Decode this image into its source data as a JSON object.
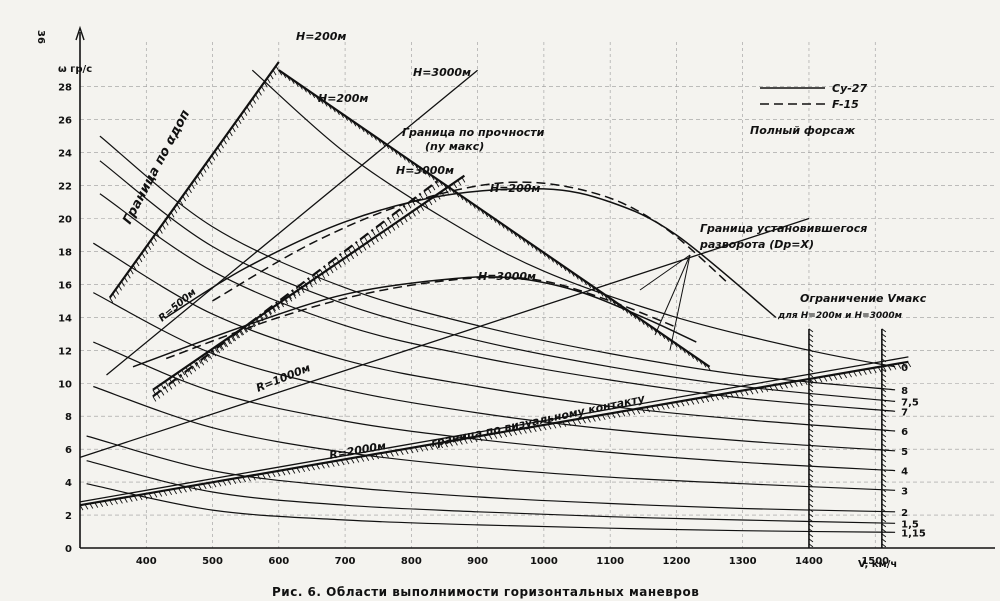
{
  "page": {
    "page_number": "36"
  },
  "caption": "Рис. 6. Области выполнимости горизонтальных маневров",
  "chart_data": {
    "type": "line",
    "xlabel": "V, км/ч",
    "ylabel": "ω гр/с",
    "xlim": [
      300,
      1560
    ],
    "ylim": [
      0,
      29.5
    ],
    "x_ticks": [
      400,
      500,
      600,
      700,
      800,
      900,
      1000,
      1100,
      1200,
      1300,
      1400,
      1500
    ],
    "y_ticks": [
      0,
      2,
      4,
      6,
      8,
      10,
      12,
      14,
      16,
      18,
      20,
      22,
      24,
      26,
      28
    ],
    "legend": {
      "position": "top-right",
      "entries": [
        {
          "name": "Су-27",
          "style": "solid"
        },
        {
          "name": "F-15",
          "style": "dashed"
        }
      ],
      "note": "Полный форсаж"
    },
    "load_factor_curves": [
      {
        "label": "0",
        "x": [
          560,
          700,
          850,
          1000,
          1200,
          1400,
          1530
        ],
        "y": [
          29,
          24,
          20,
          16.8,
          14,
          12,
          11
        ]
      },
      {
        "label": "8",
        "x": [
          330,
          500,
          700,
          900,
          1100,
          1300,
          1530
        ],
        "y": [
          25,
          19.5,
          15.8,
          13.5,
          11.8,
          10.5,
          9.6
        ]
      },
      {
        "label": "7,5",
        "x": [
          330,
          500,
          700,
          900,
          1100,
          1300,
          1530
        ],
        "y": [
          23.5,
          18.3,
          14.8,
          12.6,
          11,
          9.8,
          8.9
        ]
      },
      {
        "label": "7",
        "x": [
          330,
          500,
          700,
          900,
          1100,
          1300,
          1530
        ],
        "y": [
          21.5,
          16.8,
          13.5,
          11.6,
          10.2,
          9.1,
          8.3
        ]
      },
      {
        "label": "6",
        "x": [
          320,
          500,
          700,
          900,
          1100,
          1300,
          1530
        ],
        "y": [
          18.5,
          14.2,
          11.4,
          9.8,
          8.6,
          7.8,
          7.1
        ]
      },
      {
        "label": "5",
        "x": [
          320,
          500,
          700,
          900,
          1100,
          1300,
          1530
        ],
        "y": [
          15.5,
          11.8,
          9.6,
          8.2,
          7.2,
          6.5,
          5.9
        ]
      },
      {
        "label": "4",
        "x": [
          320,
          500,
          700,
          900,
          1100,
          1300,
          1530
        ],
        "y": [
          12.5,
          9.5,
          7.7,
          6.6,
          5.8,
          5.2,
          4.7
        ]
      },
      {
        "label": "3",
        "x": [
          320,
          500,
          700,
          900,
          1100,
          1300,
          1530
        ],
        "y": [
          9.8,
          7.3,
          5.8,
          4.9,
          4.3,
          3.9,
          3.5
        ]
      },
      {
        "label": "2",
        "x": [
          310,
          500,
          700,
          900,
          1100,
          1300,
          1530
        ],
        "y": [
          6.8,
          4.7,
          3.7,
          3.1,
          2.7,
          2.4,
          2.2
        ]
      },
      {
        "label": "1,5",
        "x": [
          310,
          500,
          700,
          900,
          1100,
          1300,
          1530
        ],
        "y": [
          5.3,
          3.4,
          2.6,
          2.2,
          1.9,
          1.7,
          1.5
        ]
      },
      {
        "label": "1,15",
        "x": [
          310,
          500,
          700,
          900,
          1100,
          1300,
          1530
        ],
        "y": [
          3.9,
          2.3,
          1.7,
          1.4,
          1.2,
          1.05,
          0.95
        ]
      }
    ],
    "radius_curves": [
      {
        "label": "R=500м",
        "x": [
          340,
          900
        ],
        "y": [
          10.5,
          29
        ]
      },
      {
        "label": "R=1000м",
        "x": [
          300,
          1400
        ],
        "y": [
          5.5,
          20
        ]
      },
      {
        "label": "R=2000м",
        "x": [
          300,
          1550
        ],
        "y": [
          2.8,
          11.6
        ]
      }
    ],
    "boundaries": [
      {
        "label": "Граница по αдоп",
        "x": [
          345,
          600
        ],
        "y": [
          15.2,
          29.5
        ],
        "style": "hatched"
      },
      {
        "label": "Граница по прочности (nу макс)",
        "x": [
          600,
          1250
        ],
        "y": [
          29,
          11
        ],
        "style": "hatched"
      },
      {
        "label": "Граница по визуальному контакту",
        "x": [
          300,
          1550
        ],
        "y": [
          2.6,
          11.3
        ],
        "style": "hatched"
      },
      {
        "label": "H=200м",
        "x": [
          410,
          880
        ],
        "y": [
          9.6,
          22.6
        ],
        "style": "hatched"
      },
      {
        "label": "H=3000м",
        "x": [
          410,
          840
        ],
        "y": [
          9.2,
          22.3
        ],
        "style": "hatched-dashdot"
      }
    ],
    "sustained_turn_curves": [
      {
        "label": "H=200м",
        "series": "Су-27",
        "x": [
          430,
          550,
          700,
          850,
          1000,
          1100,
          1200,
          1350
        ],
        "y": [
          14,
          17,
          19.8,
          21.4,
          21.8,
          21,
          19,
          14
        ]
      },
      {
        "label": "H=200м",
        "series": "F-15",
        "x": [
          500,
          650,
          800,
          950,
          1080,
          1180,
          1280
        ],
        "y": [
          15,
          18.5,
          21,
          22.2,
          21.5,
          19.5,
          16
        ]
      },
      {
        "label": "H=3000м",
        "series": "Су-27",
        "x": [
          380,
          550,
          700,
          850,
          950,
          1050,
          1150,
          1230
        ],
        "y": [
          11,
          13.5,
          15.4,
          16.3,
          16.4,
          15.6,
          14,
          12.5
        ]
      },
      {
        "label": "H=3000м",
        "series": "F-15",
        "x": [
          430,
          600,
          750,
          900,
          1000,
          1100,
          1200
        ],
        "y": [
          11.5,
          14,
          15.6,
          16.4,
          16.2,
          15,
          13.4
        ]
      }
    ],
    "vmax_limit": {
      "label": "Ограничение Vмакс",
      "sublabel": "для H=200м и H=3000м",
      "x": [
        1400,
        1510
      ]
    },
    "annotations": {
      "h200_top": "H=200м",
      "h3000_top": "H=3000м",
      "h200_mid": "H=200м",
      "h3000_mid": "H=3000м",
      "h200_peak": "H=200м",
      "h3000_peak": "H=3000м",
      "alpha_boundary": "Граница по αдоп",
      "strength_boundary": "Граница по прочности",
      "strength_boundary_sub": "(nу макс)",
      "sustained_boundary": "Граница установившегося",
      "sustained_boundary_sub": "разворота (Dр=X)",
      "visual_contact": "граница по визуальному контакту",
      "r500": "R=500м",
      "r1000": "R=1000м",
      "r2000": "R=2000м"
    }
  }
}
